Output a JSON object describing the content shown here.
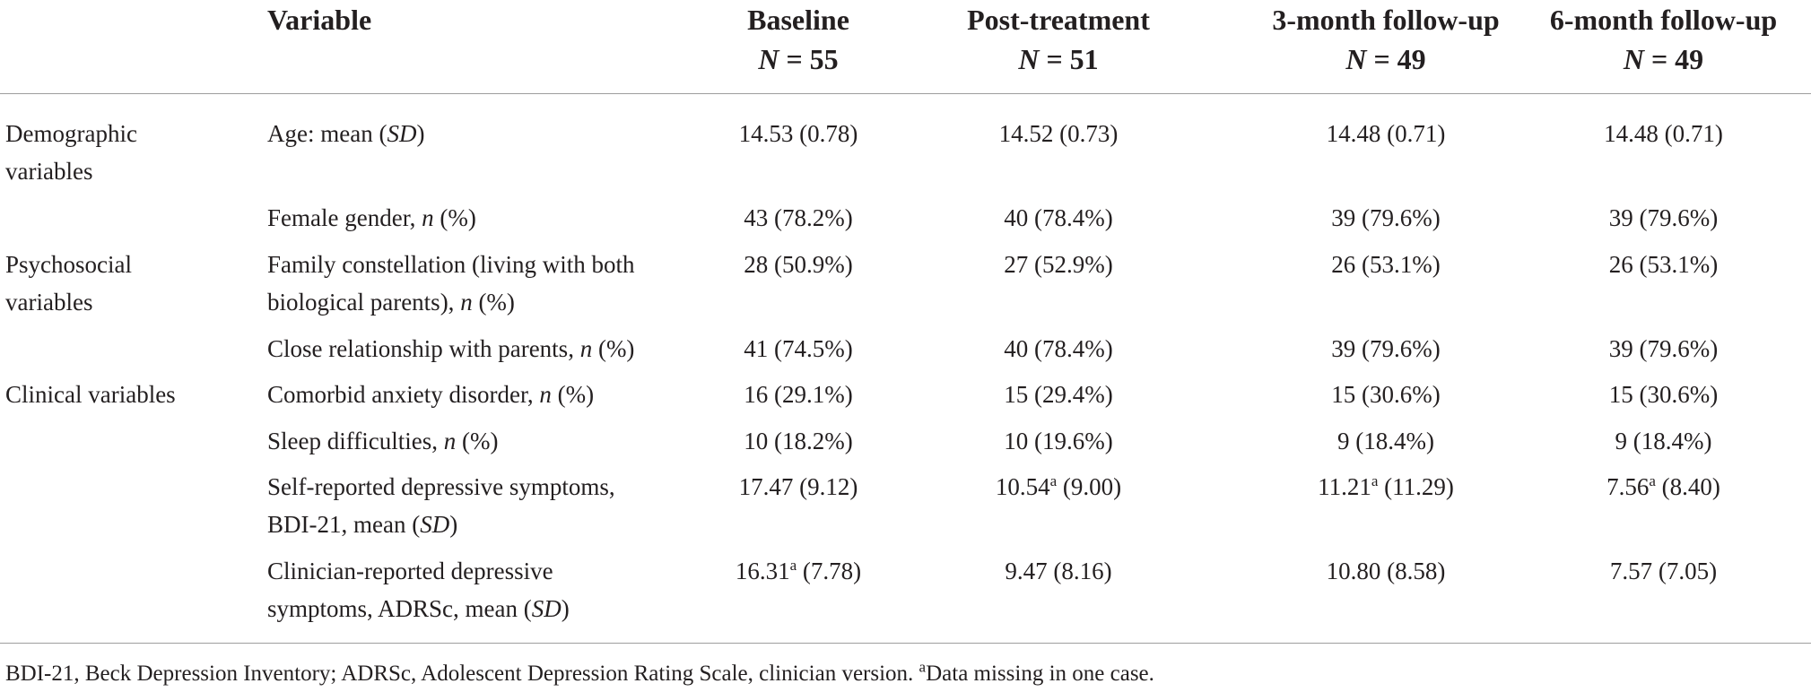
{
  "header": {
    "variable": "Variable",
    "baseline": {
      "label": "Baseline",
      "n_prefix": "N",
      "n_value": "= 55"
    },
    "post": {
      "label": "Post-treatment",
      "n_prefix": "N",
      "n_value": "= 51"
    },
    "fu3": {
      "label": "3-month follow-up",
      "n_prefix": "N",
      "n_value": "= 49"
    },
    "fu6": {
      "label": "6-month follow-up",
      "n_prefix": "N",
      "n_value": "= 49"
    }
  },
  "rows": {
    "age": {
      "category_l1": "Demographic",
      "category_l2": "variables",
      "var_pre": "Age: mean (",
      "var_it": "SD",
      "var_post": ")",
      "baseline": "14.53 (0.78)",
      "post": "14.52 (0.73)",
      "fu3": "14.48 (0.71)",
      "fu6": "14.48 (0.71)"
    },
    "gender": {
      "var_pre": "Female gender, ",
      "var_it": "n",
      "var_post": " (%)",
      "baseline": "43 (78.2%)",
      "post": "40 (78.4%)",
      "fu3": "39 (79.6%)",
      "fu6": "39 (79.6%)"
    },
    "family": {
      "category_l1": "Psychosocial",
      "category_l2": "variables",
      "var_l1": "Family constellation (living with both",
      "var_l2_pre": "biological parents), ",
      "var_it": "n",
      "var_post": " (%)",
      "baseline": "28 (50.9%)",
      "post": "27 (52.9%)",
      "fu3": "26 (53.1%)",
      "fu6": "26 (53.1%)"
    },
    "close": {
      "var_pre": "Close relationship with parents, ",
      "var_it": "n",
      "var_post": " (%)",
      "baseline": "41 (74.5%)",
      "post": "40 (78.4%)",
      "fu3": "39 (79.6%)",
      "fu6": "39 (79.6%)"
    },
    "anxiety": {
      "category_l1": "Clinical variables",
      "var_pre": "Comorbid anxiety disorder, ",
      "var_it": "n",
      "var_post": " (%)",
      "baseline": "16 (29.1%)",
      "post": "15 (29.4%)",
      "fu3": "15 (30.6%)",
      "fu6": "15 (30.6%)"
    },
    "sleep": {
      "var_pre": "Sleep difficulties, ",
      "var_it": "n",
      "var_post": " (%)",
      "baseline": "10 (18.2%)",
      "post": "10 (19.6%)",
      "fu3": "9 (18.4%)",
      "fu6": "9 (18.4%)"
    },
    "bdi": {
      "var_l1": "Self-reported depressive symptoms,",
      "var_l2_pre": "BDI-21, mean (",
      "var_it": "SD",
      "var_post": ")",
      "baseline": "17.47 (9.12)",
      "post_val": "10.54",
      "post_sup": "a",
      "post_sd": " (9.00)",
      "fu3_val": "11.21",
      "fu3_sup": "a",
      "fu3_sd": " (11.29)",
      "fu6_val": "7.56",
      "fu6_sup": "a",
      "fu6_sd": " (8.40)"
    },
    "adrs": {
      "var_l1": "Clinician-reported depressive",
      "var_l2_pre": "symptoms, ADRSc, mean (",
      "var_it": "SD",
      "var_post": ")",
      "baseline_val": "16.31",
      "baseline_sup": "a",
      "baseline_sd": " (7.78)",
      "post": "9.47 (8.16)",
      "fu3": "10.80 (8.58)",
      "fu6": "7.57 (7.05)"
    }
  },
  "footnote": {
    "text": "BDI-21, Beck Depression Inventory; ADRSc, Adolescent Depression Rating Scale, clinician version. ",
    "sup": "a",
    "tail": "Data missing in one case."
  }
}
